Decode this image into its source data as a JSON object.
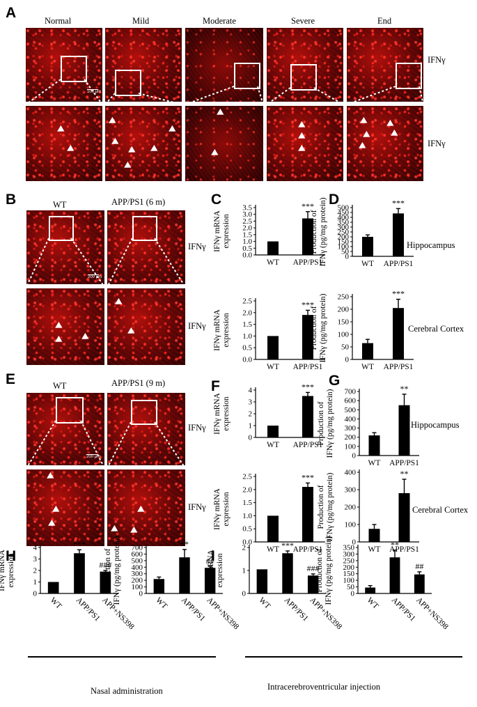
{
  "panels": {
    "A": "A",
    "B": "B",
    "C": "C",
    "D": "D",
    "E": "E",
    "F": "F",
    "G": "G",
    "H": "H",
    "I": "I"
  },
  "panel_a": {
    "columns": [
      "Normal",
      "Mild",
      "Moderate",
      "Severe",
      "End"
    ],
    "stain_label": "IFNγ",
    "scale": "100 μm"
  },
  "panel_b": {
    "col_wt": "WT",
    "col_app": "APP/PS1 (6 m)",
    "stain_label": "IFNγ",
    "scale": "200 μm"
  },
  "panel_e": {
    "col_wt": "WT",
    "col_app": "APP/PS1 (9 m)",
    "stain_label": "IFNγ",
    "scale": "200 μm"
  },
  "region_labels": {
    "hippocampus": "Hippocampus",
    "cortex": "Cerebral Cortex"
  },
  "footer": {
    "nasal": "Nasal administration",
    "icv": "Intracerebroventricular injection"
  },
  "chart_data": [
    {
      "id": "C-top",
      "type": "bar",
      "categories": [
        "WT",
        "APP/PS1"
      ],
      "values": [
        1.0,
        2.7
      ],
      "errors": [
        0,
        0.5
      ],
      "sig": [
        "",
        "***"
      ],
      "ylabel": [
        "IFNγ mRNA",
        "expression"
      ],
      "ylim": [
        0,
        3.5
      ],
      "ticks": [
        0,
        0.5,
        1.0,
        1.5,
        2.0,
        2.5,
        3.0,
        3.5
      ],
      "decimals": 1
    },
    {
      "id": "C-bot",
      "type": "bar",
      "categories": [
        "WT",
        "APP/PS1"
      ],
      "values": [
        1.0,
        1.9
      ],
      "errors": [
        0,
        0.2
      ],
      "sig": [
        "",
        "***"
      ],
      "ylabel": [
        "IFNγ mRNA",
        "expression"
      ],
      "ylim": [
        0,
        2.5
      ],
      "ticks": [
        0,
        0.5,
        1.0,
        1.5,
        2.0,
        2.5
      ],
      "decimals": 1
    },
    {
      "id": "D-top",
      "type": "bar",
      "categories": [
        "WT",
        "APP/PS1"
      ],
      "values": [
        200,
        440
      ],
      "errors": [
        20,
        50
      ],
      "sig": [
        "",
        "***"
      ],
      "ylabel": [
        "Production of",
        "IFNγ (pg/mg protein)"
      ],
      "ylim": [
        0,
        500
      ],
      "ticks": [
        0,
        50,
        100,
        150,
        200,
        250,
        300,
        350,
        400,
        450,
        500
      ],
      "decimals": 0
    },
    {
      "id": "D-bot",
      "type": "bar",
      "categories": [
        "WT",
        "APP/PS1"
      ],
      "values": [
        65,
        205
      ],
      "errors": [
        15,
        35
      ],
      "sig": [
        "",
        "***"
      ],
      "ylabel": [
        "Production of",
        "IFNγ (pg/mg protein)"
      ],
      "ylim": [
        0,
        250
      ],
      "ticks": [
        0,
        50,
        100,
        150,
        200,
        250
      ],
      "decimals": 0
    },
    {
      "id": "F-top",
      "type": "bar",
      "categories": [
        "WT",
        "APP/PS1"
      ],
      "values": [
        1.0,
        3.5
      ],
      "errors": [
        0,
        0.3
      ],
      "sig": [
        "",
        "***"
      ],
      "ylabel": [
        "IFNγ mRNA",
        "expression"
      ],
      "ylim": [
        0,
        4
      ],
      "ticks": [
        0,
        1,
        2,
        3,
        4
      ],
      "decimals": 0
    },
    {
      "id": "F-bot",
      "type": "bar",
      "categories": [
        "WT",
        "APP/PS1"
      ],
      "values": [
        1.0,
        2.1
      ],
      "errors": [
        0,
        0.15
      ],
      "sig": [
        "",
        "***"
      ],
      "ylabel": [
        "IFNγ mRNA",
        "expression"
      ],
      "ylim": [
        0,
        2.5
      ],
      "ticks": [
        0,
        0.5,
        1.0,
        1.5,
        2.0,
        2.5
      ],
      "decimals": 1
    },
    {
      "id": "G-top",
      "type": "bar",
      "categories": [
        "WT",
        "APP/PS1"
      ],
      "values": [
        220,
        550
      ],
      "errors": [
        30,
        120
      ],
      "sig": [
        "",
        "**"
      ],
      "ylabel": [
        "Production of",
        "IFNγ (pg/mg protein)"
      ],
      "ylim": [
        0,
        700
      ],
      "ticks": [
        0,
        100,
        200,
        300,
        400,
        500,
        600,
        700
      ],
      "decimals": 0
    },
    {
      "id": "G-bot",
      "type": "bar",
      "categories": [
        "WT",
        "APP/PS1"
      ],
      "values": [
        75,
        280
      ],
      "errors": [
        25,
        80
      ],
      "sig": [
        "",
        "**"
      ],
      "ylabel": [
        "Production of",
        "IFNγ (pg/mg protein)"
      ],
      "ylim": [
        0,
        400
      ],
      "ticks": [
        0,
        100,
        200,
        300,
        400
      ],
      "decimals": 0
    },
    {
      "id": "H-1",
      "type": "bar",
      "categories": [
        "WT",
        "APP/PS1",
        "APP+NS398"
      ],
      "values": [
        1.0,
        3.5,
        1.9
      ],
      "errors": [
        0,
        0.3,
        0.1
      ],
      "sig": [
        "",
        "***",
        "###"
      ],
      "ylabel": [
        "IFNγ mRNA",
        "expression"
      ],
      "ylim": [
        0,
        4
      ],
      "ticks": [
        0,
        1,
        2,
        3,
        4
      ],
      "decimals": 0
    },
    {
      "id": "H-2",
      "type": "bar",
      "categories": [
        "WT",
        "APP/PS1",
        "APP+NS398"
      ],
      "values": [
        220,
        550,
        390
      ],
      "errors": [
        30,
        120,
        20
      ],
      "sig": [
        "",
        "**",
        "##"
      ],
      "ylabel": [
        "Production of",
        "IFNγ (pg/mg protein)"
      ],
      "ylim": [
        0,
        700
      ],
      "ticks": [
        0,
        100,
        200,
        300,
        400,
        500,
        600,
        700
      ],
      "decimals": 0
    },
    {
      "id": "I-1",
      "type": "bar",
      "categories": [
        "WT",
        "APP/PS1",
        "APP+NS398"
      ],
      "values": [
        1.05,
        1.75,
        0.78
      ],
      "errors": [
        0,
        0.1,
        0.07
      ],
      "sig": [
        "",
        "***",
        "###"
      ],
      "ylabel": [
        "IFNγ mRNA",
        "expression"
      ],
      "ylim": [
        0,
        2
      ],
      "ticks": [
        0,
        1,
        2
      ],
      "decimals": 0
    },
    {
      "id": "I-2",
      "type": "bar",
      "categories": [
        "WT",
        "APP/PS1",
        "APP+NS398"
      ],
      "values": [
        45,
        275,
        145
      ],
      "errors": [
        15,
        55,
        20
      ],
      "sig": [
        "",
        "**",
        "##"
      ],
      "ylabel": [
        "Production of",
        "IFNγ (pg/mg protein)"
      ],
      "ylim": [
        0,
        350
      ],
      "ticks": [
        0,
        50,
        100,
        150,
        200,
        250,
        300,
        350
      ],
      "decimals": 0
    }
  ]
}
